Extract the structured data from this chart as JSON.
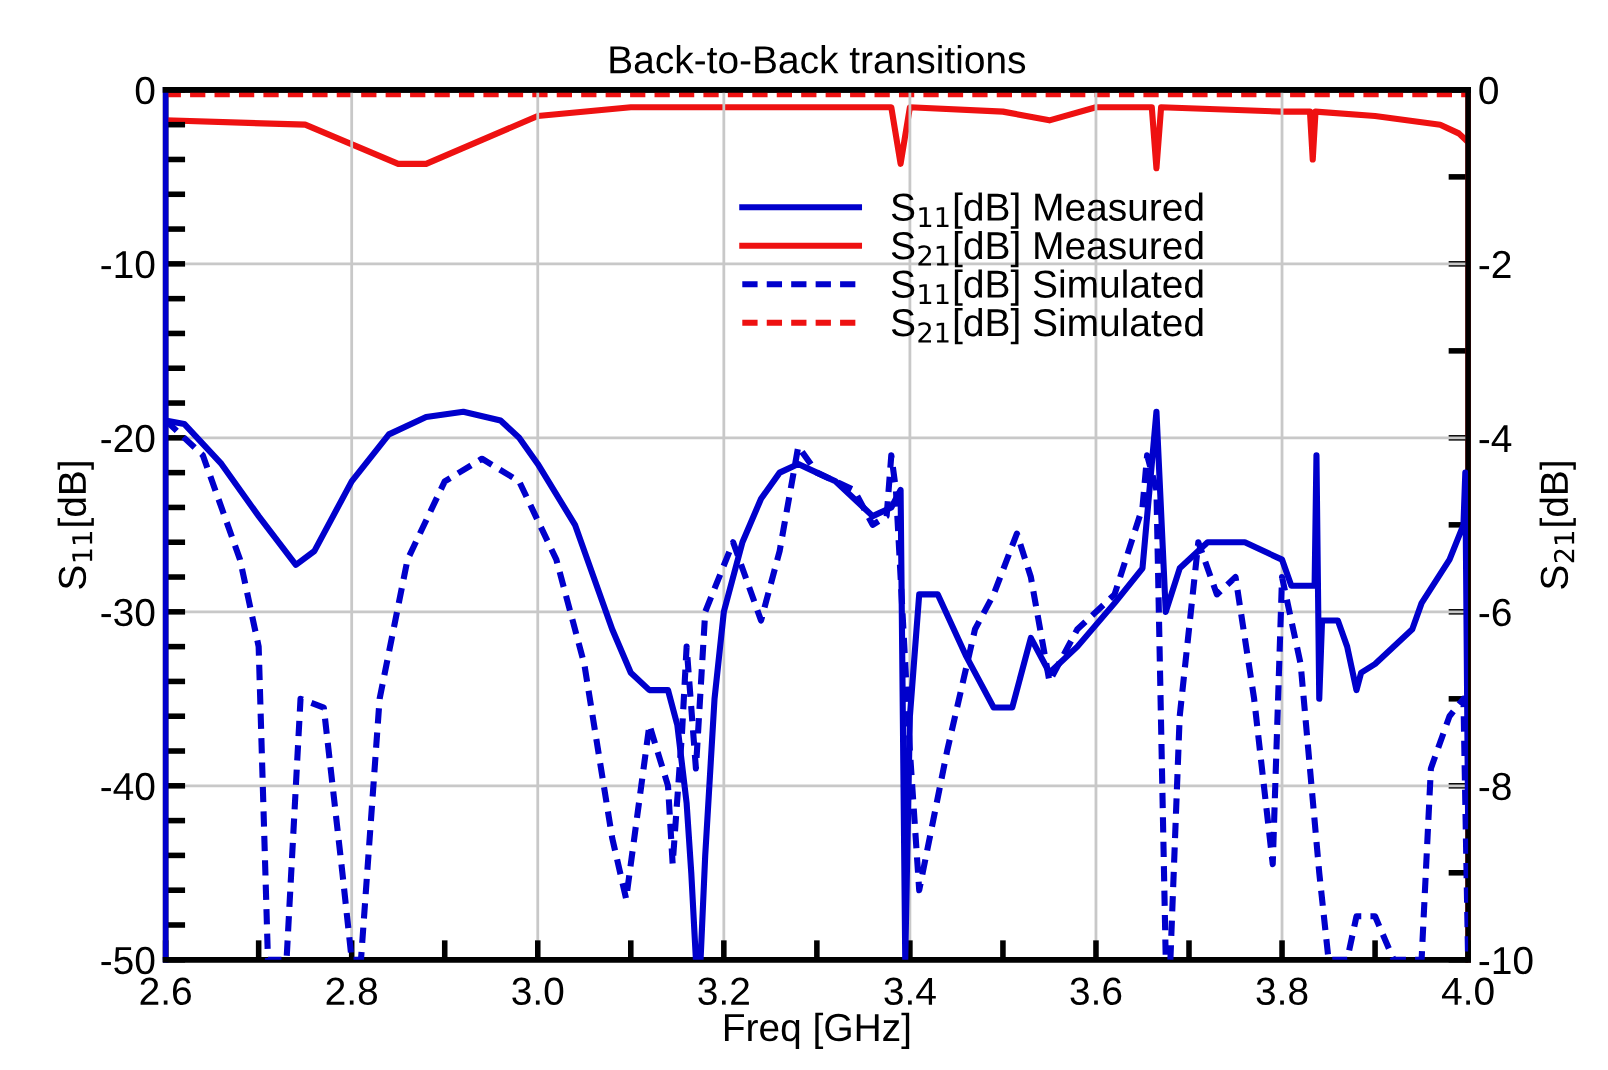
{
  "chart_data": {
    "type": "line",
    "title": "Back-to-Back transitions",
    "xlabel": "Freq [GHz]",
    "ylabel": "S$_{11}$[dB]",
    "y2label": "S$_{21}$[dB]",
    "xlim": [
      2.6,
      4.0
    ],
    "xticks": [
      {
        "value": 2.6,
        "label": "2.6"
      },
      {
        "value": 2.7,
        "label": null
      },
      {
        "value": 2.8,
        "label": "2.8"
      },
      {
        "value": 2.9,
        "label": null
      },
      {
        "value": 3.0,
        "label": "3.0"
      },
      {
        "value": 3.1,
        "label": null
      },
      {
        "value": 3.2,
        "label": "3.2"
      },
      {
        "value": 3.3,
        "label": null
      },
      {
        "value": 3.4,
        "label": "3.4"
      },
      {
        "value": 3.5,
        "label": null
      },
      {
        "value": 3.6,
        "label": "3.6"
      },
      {
        "value": 3.7,
        "label": null
      },
      {
        "value": 3.8,
        "label": "3.8"
      },
      {
        "value": 3.9,
        "label": null
      },
      {
        "value": 4.0,
        "label": "4.0"
      }
    ],
    "ylim": [
      -50,
      0
    ],
    "yticks": [
      -50,
      {
        "value": -48,
        "label": null
      },
      {
        "value": -46,
        "label": null
      },
      {
        "value": -44,
        "label": null
      },
      {
        "value": -42,
        "label": null
      },
      -40,
      {
        "value": -38,
        "label": null
      },
      {
        "value": -36,
        "label": null
      },
      {
        "value": -34,
        "label": null
      },
      {
        "value": -32,
        "label": null
      },
      -30,
      {
        "value": -28,
        "label": null
      },
      {
        "value": -26,
        "label": null
      },
      {
        "value": -24,
        "label": null
      },
      {
        "value": -22,
        "label": null
      },
      -20,
      {
        "value": -18,
        "label": null
      },
      {
        "value": -16,
        "label": null
      },
      {
        "value": -14,
        "label": null
      },
      {
        "value": -12,
        "label": null
      },
      -10,
      {
        "value": -8,
        "label": null
      },
      {
        "value": -6,
        "label": null
      },
      {
        "value": -4,
        "label": null
      },
      {
        "value": -2,
        "label": null
      },
      0
    ],
    "y2lim": [
      -10,
      0
    ],
    "y2ticks": [
      -10,
      {
        "value": -9,
        "label": null
      },
      -8,
      {
        "value": -7,
        "label": null
      },
      -6,
      {
        "value": -5,
        "label": null
      },
      -4,
      {
        "value": -3,
        "label": null
      },
      -2,
      {
        "value": -1,
        "label": null
      },
      0
    ],
    "grid": true,
    "legend": "top right",
    "marker": "none",
    "series": [
      {
        "name": "S$_{11}$[dB] Measured",
        "color": "#0000cc",
        "line_style": "solid",
        "x": [
          2.6,
          2.62,
          2.66,
          2.7,
          2.74,
          2.76,
          2.8,
          2.84,
          2.88,
          2.92,
          2.96,
          2.98,
          3.0,
          3.04,
          3.06,
          3.08,
          3.1,
          3.12,
          3.14,
          3.15,
          3.16,
          3.165,
          3.17,
          3.175,
          3.18,
          3.19,
          3.2,
          3.22,
          3.24,
          3.26,
          3.28,
          3.3,
          3.32,
          3.36,
          3.38,
          3.39,
          3.395,
          3.4,
          3.41,
          3.43,
          3.46,
          3.49,
          3.51,
          3.53,
          3.55,
          3.58,
          3.62,
          3.65,
          3.665,
          3.675,
          3.69,
          3.72,
          3.76,
          3.8,
          3.81,
          3.835,
          3.837,
          3.84,
          3.843,
          3.86,
          3.87,
          3.88,
          3.885,
          3.9,
          3.94,
          3.95,
          3.98,
          3.995,
          3.997,
          4.0
        ],
        "values": [
          -19,
          -19.2,
          -21.5,
          -24.5,
          -27.3,
          -26.5,
          -22.5,
          -19.8,
          -18.8,
          -18.5,
          -19,
          -20,
          -21.5,
          -25,
          -28,
          -31,
          -33.5,
          -34.5,
          -34.5,
          -36.5,
          -41,
          -45,
          -50,
          -50,
          -44,
          -35,
          -30,
          -26,
          -23.5,
          -22,
          -21.5,
          -22,
          -22.5,
          -24.5,
          -24,
          -23,
          -50,
          -36,
          -29,
          -29,
          -32.5,
          -35.5,
          -35.5,
          -31.5,
          -33.5,
          -32,
          -29.5,
          -27.5,
          -18.5,
          -30,
          -27.5,
          -26,
          -26,
          -27,
          -28.5,
          -28.5,
          -21,
          -35,
          -30.5,
          -30.5,
          -32,
          -34.5,
          -33.5,
          -33,
          -31,
          -29.5,
          -27,
          -25,
          -22,
          -42
        ]
      },
      {
        "name": "S$_{21}$[dB] Measured",
        "color": "#ee1111",
        "line_style": "solid",
        "axis": "y2",
        "x": [
          2.6,
          2.75,
          2.85,
          2.88,
          3.0,
          3.1,
          3.3,
          3.38,
          3.39,
          3.4,
          3.5,
          3.55,
          3.6,
          3.66,
          3.665,
          3.67,
          3.8,
          3.83,
          3.833,
          3.836,
          3.9,
          3.97,
          3.99,
          4.0
        ],
        "values": [
          -0.35,
          -0.4,
          -0.85,
          -0.85,
          -0.3,
          -0.2,
          -0.2,
          -0.2,
          -0.85,
          -0.2,
          -0.25,
          -0.35,
          -0.2,
          -0.2,
          -0.9,
          -0.2,
          -0.25,
          -0.25,
          -0.8,
          -0.25,
          -0.3,
          -0.4,
          -0.5,
          -0.6
        ]
      },
      {
        "name": "S$_{11}$[dB] Simulated",
        "color": "#0000cc",
        "line_style": "dashed",
        "x": [
          2.6,
          2.64,
          2.68,
          2.7,
          2.71,
          2.73,
          2.745,
          2.77,
          2.79,
          2.8,
          2.81,
          2.83,
          2.86,
          2.9,
          2.94,
          2.98,
          3.02,
          3.05,
          3.08,
          3.095,
          3.12,
          3.14,
          3.145,
          3.155,
          3.16,
          3.17,
          3.18,
          3.21,
          3.24,
          3.26,
          3.28,
          3.3,
          3.34,
          3.36,
          3.375,
          3.38,
          3.385,
          3.4,
          3.41,
          3.44,
          3.47,
          3.49,
          3.515,
          3.53,
          3.55,
          3.58,
          3.62,
          3.65,
          3.655,
          3.665,
          3.675,
          3.68,
          3.69,
          3.71,
          3.73,
          3.75,
          3.77,
          3.79,
          3.8,
          3.82,
          3.84,
          3.85,
          3.87,
          3.88,
          3.9,
          3.92,
          3.95,
          3.96,
          3.98,
          3.995,
          4.0
        ],
        "values": [
          -19,
          -21,
          -27,
          -32,
          -50,
          -50,
          -35,
          -35.5,
          -45,
          -50,
          -50,
          -35,
          -27,
          -22.5,
          -21.2,
          -22.5,
          -27,
          -33,
          -43,
          -46.5,
          -36.5,
          -40,
          -44.5,
          -37,
          -32,
          -39,
          -30,
          -26,
          -30.5,
          -26.5,
          -20.5,
          -22,
          -23,
          -25,
          -24.5,
          -21,
          -23,
          -38,
          -46,
          -38,
          -31,
          -29,
          -25.5,
          -28,
          -34,
          -31,
          -29,
          -24,
          -21,
          -23,
          -50,
          -50,
          -36,
          -26,
          -29,
          -28,
          -35,
          -44.5,
          -28,
          -33,
          -45,
          -50,
          -50,
          -47.5,
          -47.5,
          -50,
          -50,
          -39,
          -36,
          -35,
          -50
        ]
      },
      {
        "name": "S$_{21}$[dB] Simulated",
        "color": "#ee1111",
        "line_style": "dashed",
        "axis": "y2",
        "x": [
          2.6,
          4.0
        ],
        "values": [
          -0.05,
          -0.05
        ]
      }
    ]
  }
}
